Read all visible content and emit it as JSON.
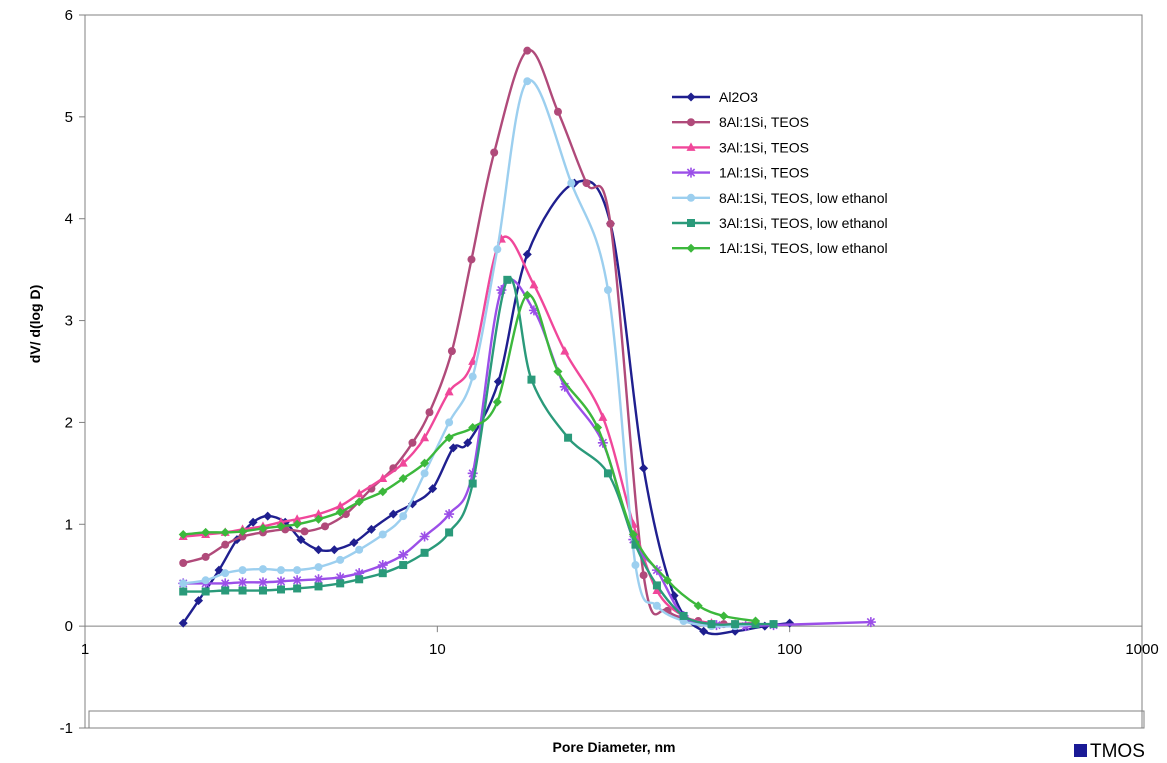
{
  "chart_data": {
    "type": "line",
    "title": "",
    "xlabel": "Pore Diameter, nm",
    "ylabel": "dV/ d(log D)",
    "xscale": "log",
    "xlim": [
      1,
      1000
    ],
    "ylim": [
      -1,
      6
    ],
    "x_ticks": [
      "1",
      "10",
      "100",
      "1000"
    ],
    "y_ticks": [
      "-1",
      "0",
      "1",
      "2",
      "3",
      "4",
      "5",
      "6"
    ],
    "grid": false,
    "legend_position": "top-right",
    "series": [
      {
        "name": "Al2O3",
        "color": "#1f1f8f",
        "marker": "diamond",
        "x": [
          1.9,
          2.1,
          2.4,
          2.7,
          3.0,
          3.3,
          3.7,
          4.1,
          4.6,
          5.1,
          5.8,
          6.5,
          7.5,
          8.5,
          9.7,
          11.1,
          12.2,
          14.9,
          18.0,
          24.5,
          31.0,
          38.5,
          47.0,
          57.0,
          70.0,
          85.0,
          100.0
        ],
        "y": [
          0.03,
          0.25,
          0.55,
          0.85,
          1.02,
          1.08,
          1.02,
          0.85,
          0.75,
          0.75,
          0.82,
          0.95,
          1.1,
          1.2,
          1.35,
          1.75,
          1.8,
          2.4,
          3.65,
          4.35,
          3.95,
          1.55,
          0.3,
          -0.05,
          -0.05,
          0.0,
          0.03
        ]
      },
      {
        "name": "8Al:1Si, TEOS",
        "color": "#b04a7a",
        "marker": "circle",
        "x": [
          1.9,
          2.2,
          2.5,
          2.8,
          3.2,
          3.7,
          4.2,
          4.8,
          5.5,
          6.5,
          7.5,
          8.5,
          9.5,
          11.0,
          12.5,
          14.5,
          18.0,
          22.0,
          26.5,
          31.0,
          38.5,
          45.0,
          55.0,
          65.0,
          80.0
        ],
        "y": [
          0.62,
          0.68,
          0.8,
          0.88,
          0.92,
          0.95,
          0.93,
          0.98,
          1.1,
          1.35,
          1.55,
          1.8,
          2.1,
          2.7,
          3.6,
          4.65,
          5.65,
          5.05,
          4.35,
          3.95,
          0.5,
          0.15,
          0.05,
          0.02,
          0.03
        ]
      },
      {
        "name": "3Al:1Si, TEOS",
        "color": "#f0479a",
        "marker": "triangle",
        "x": [
          1.9,
          2.2,
          2.5,
          2.8,
          3.2,
          3.6,
          4.0,
          4.6,
          5.3,
          6.0,
          7.0,
          8.0,
          9.2,
          10.8,
          12.6,
          15.2,
          18.8,
          23.0,
          29.5,
          36.0,
          42.0,
          50.0,
          60.0,
          70.0,
          80.0
        ],
        "y": [
          0.88,
          0.9,
          0.92,
          0.95,
          0.98,
          1.02,
          1.05,
          1.1,
          1.18,
          1.3,
          1.45,
          1.6,
          1.85,
          2.3,
          2.6,
          3.8,
          3.35,
          2.7,
          2.05,
          1.0,
          0.35,
          0.1,
          0.03,
          0.02,
          0.03
        ]
      },
      {
        "name": "1Al:1Si, TEOS",
        "color": "#9b4fe8",
        "marker": "star",
        "x": [
          1.9,
          2.2,
          2.5,
          2.8,
          3.2,
          3.6,
          4.0,
          4.6,
          5.3,
          6.0,
          7.0,
          8.0,
          9.2,
          10.8,
          12.6,
          15.2,
          18.8,
          23.0,
          29.5,
          36.0,
          42.0,
          50.0,
          62.0,
          75.0,
          90.0,
          170.0
        ],
        "y": [
          0.42,
          0.42,
          0.42,
          0.43,
          0.43,
          0.44,
          0.45,
          0.46,
          0.48,
          0.52,
          0.6,
          0.7,
          0.88,
          1.1,
          1.5,
          3.3,
          3.1,
          2.35,
          1.8,
          0.85,
          0.55,
          0.1,
          0.01,
          0.0,
          0.01,
          0.04
        ]
      },
      {
        "name": "8Al:1Si, TEOS, low ethanol",
        "color": "#9ccfef",
        "marker": "circle",
        "x": [
          1.9,
          2.2,
          2.5,
          2.8,
          3.2,
          3.6,
          4.0,
          4.6,
          5.3,
          6.0,
          7.0,
          8.0,
          9.2,
          10.8,
          12.6,
          14.8,
          18.0,
          24.0,
          30.5,
          36.5,
          42.0,
          50.0,
          60.0,
          70.0,
          80.0
        ],
        "y": [
          0.42,
          0.45,
          0.52,
          0.55,
          0.56,
          0.55,
          0.55,
          0.58,
          0.65,
          0.75,
          0.9,
          1.08,
          1.5,
          2.0,
          2.45,
          3.7,
          5.35,
          4.35,
          3.3,
          0.6,
          0.2,
          0.05,
          0.0,
          0.0,
          0.02
        ]
      },
      {
        "name": "3Al:1Si, TEOS, low ethanol",
        "color": "#2a9a7a",
        "marker": "square",
        "x": [
          1.9,
          2.2,
          2.5,
          2.8,
          3.2,
          3.6,
          4.0,
          4.6,
          5.3,
          6.0,
          7.0,
          8.0,
          9.2,
          10.8,
          12.6,
          15.8,
          18.5,
          23.5,
          30.5,
          36.5,
          42.0,
          50.0,
          60.0,
          70.0,
          80.0,
          90.0
        ],
        "y": [
          0.34,
          0.34,
          0.35,
          0.35,
          0.35,
          0.36,
          0.37,
          0.39,
          0.42,
          0.46,
          0.52,
          0.6,
          0.72,
          0.92,
          1.4,
          3.4,
          2.42,
          1.85,
          1.5,
          0.8,
          0.4,
          0.1,
          0.02,
          0.02,
          0.02,
          0.02
        ]
      },
      {
        "name": "1Al:1Si, TEOS, low ethanol",
        "color": "#3cb83c",
        "marker": "diamond",
        "x": [
          1.9,
          2.2,
          2.5,
          2.8,
          3.2,
          3.6,
          4.0,
          4.6,
          5.3,
          6.0,
          7.0,
          8.0,
          9.2,
          10.8,
          12.6,
          14.8,
          18.0,
          22.0,
          28.5,
          36.0,
          45.0,
          55.0,
          65.0,
          80.0
        ],
        "y": [
          0.9,
          0.92,
          0.92,
          0.93,
          0.96,
          0.98,
          1.0,
          1.05,
          1.12,
          1.22,
          1.32,
          1.45,
          1.6,
          1.85,
          1.95,
          2.2,
          3.25,
          2.5,
          1.95,
          0.9,
          0.45,
          0.2,
          0.1,
          0.05
        ]
      }
    ]
  },
  "footer_legend": {
    "label": "TMOS",
    "color": "#1a1a96"
  }
}
